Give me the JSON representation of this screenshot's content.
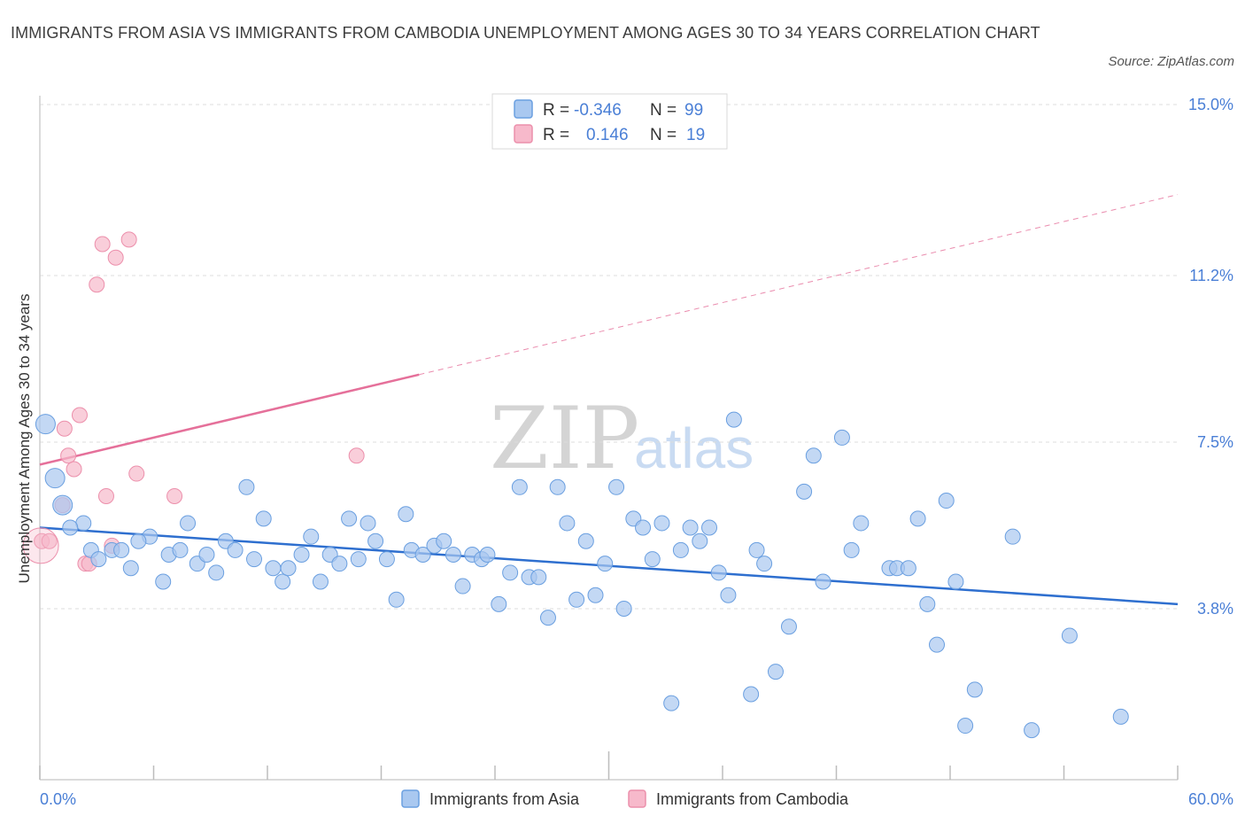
{
  "title": "IMMIGRANTS FROM ASIA VS IMMIGRANTS FROM CAMBODIA UNEMPLOYMENT AMONG AGES 30 TO 34 YEARS CORRELATION CHART",
  "source": "Source: ZipAtlas.com",
  "watermark": {
    "zip": "ZIP",
    "atlas": "atlas"
  },
  "legend": {
    "r_label": "R =",
    "n_label": "N =",
    "rows": [
      {
        "r": "-0.346",
        "n": "99",
        "color": "#a9c8f0"
      },
      {
        "r": "0.146",
        "n": "19",
        "color": "#f7b9cb"
      }
    ]
  },
  "chart_data": {
    "type": "scatter",
    "title": "IMMIGRANTS FROM ASIA VS IMMIGRANTS FROM CAMBODIA UNEMPLOYMENT AMONG AGES 30 TO 34 YEARS CORRELATION CHART",
    "ylabel": "Unemployment Among Ages 30 to 34 years",
    "xlabel": "",
    "x_tick_labels": [
      "0.0%",
      "60.0%"
    ],
    "y_tick_labels": [
      "3.8%",
      "7.5%",
      "11.2%",
      "15.0%"
    ],
    "y_ticks": [
      3.8,
      7.5,
      11.2,
      15.0
    ],
    "xlim": [
      0,
      60
    ],
    "ylim": [
      0,
      15.0
    ],
    "grid": true,
    "legend_position": "top-center",
    "series": [
      {
        "name": "Immigrants from Asia",
        "color": "#a9c8f0",
        "stroke": "#6a9fe0",
        "line_color": "#2e6fcf",
        "trend": {
          "x": [
            0,
            60
          ],
          "y": [
            5.6,
            3.9
          ],
          "dashed_after": 60
        },
        "points": [
          [
            0.3,
            7.9
          ],
          [
            0.8,
            6.7
          ],
          [
            1.2,
            6.1
          ],
          [
            2.3,
            5.7
          ],
          [
            1.6,
            5.6
          ],
          [
            2.7,
            5.1
          ],
          [
            3.1,
            4.9
          ],
          [
            3.8,
            5.1
          ],
          [
            4.3,
            5.1
          ],
          [
            4.8,
            4.7
          ],
          [
            5.8,
            5.4
          ],
          [
            5.2,
            5.3
          ],
          [
            6.5,
            4.4
          ],
          [
            6.8,
            5.0
          ],
          [
            7.4,
            5.1
          ],
          [
            7.8,
            5.7
          ],
          [
            8.3,
            4.8
          ],
          [
            8.8,
            5.0
          ],
          [
            9.3,
            4.6
          ],
          [
            9.8,
            5.3
          ],
          [
            10.3,
            5.1
          ],
          [
            10.9,
            6.5
          ],
          [
            11.3,
            4.9
          ],
          [
            11.8,
            5.8
          ],
          [
            12.3,
            4.7
          ],
          [
            12.8,
            4.4
          ],
          [
            13.1,
            4.7
          ],
          [
            13.8,
            5.0
          ],
          [
            14.3,
            5.4
          ],
          [
            14.8,
            4.4
          ],
          [
            15.3,
            5.0
          ],
          [
            15.8,
            4.8
          ],
          [
            16.3,
            5.8
          ],
          [
            16.8,
            4.9
          ],
          [
            17.3,
            5.7
          ],
          [
            17.7,
            5.3
          ],
          [
            18.3,
            4.9
          ],
          [
            18.8,
            4.0
          ],
          [
            19.3,
            5.9
          ],
          [
            19.6,
            5.1
          ],
          [
            20.2,
            5.0
          ],
          [
            20.8,
            5.2
          ],
          [
            21.3,
            5.3
          ],
          [
            21.8,
            5.0
          ],
          [
            22.3,
            4.3
          ],
          [
            22.8,
            5.0
          ],
          [
            23.3,
            4.9
          ],
          [
            23.6,
            5.0
          ],
          [
            24.2,
            3.9
          ],
          [
            24.8,
            4.6
          ],
          [
            25.3,
            6.5
          ],
          [
            25.8,
            4.5
          ],
          [
            26.3,
            4.5
          ],
          [
            26.8,
            3.6
          ],
          [
            27.3,
            6.5
          ],
          [
            27.8,
            5.7
          ],
          [
            28.3,
            4.0
          ],
          [
            28.8,
            5.3
          ],
          [
            29.3,
            4.1
          ],
          [
            29.8,
            4.8
          ],
          [
            30.4,
            6.5
          ],
          [
            30.8,
            3.8
          ],
          [
            31.3,
            5.8
          ],
          [
            31.8,
            5.6
          ],
          [
            32.3,
            4.9
          ],
          [
            32.8,
            5.7
          ],
          [
            33.3,
            1.7
          ],
          [
            33.8,
            5.1
          ],
          [
            34.3,
            5.6
          ],
          [
            34.8,
            5.3
          ],
          [
            35.3,
            5.6
          ],
          [
            35.8,
            4.6
          ],
          [
            36.3,
            4.1
          ],
          [
            36.6,
            8.0
          ],
          [
            37.5,
            1.9
          ],
          [
            37.8,
            5.1
          ],
          [
            38.2,
            4.8
          ],
          [
            38.8,
            2.4
          ],
          [
            39.5,
            3.4
          ],
          [
            40.3,
            6.4
          ],
          [
            40.8,
            7.2
          ],
          [
            41.3,
            4.4
          ],
          [
            42.3,
            7.6
          ],
          [
            42.8,
            5.1
          ],
          [
            43.3,
            5.7
          ],
          [
            44.8,
            4.7
          ],
          [
            45.2,
            4.7
          ],
          [
            45.8,
            4.7
          ],
          [
            46.3,
            5.8
          ],
          [
            46.8,
            3.9
          ],
          [
            47.3,
            3.0
          ],
          [
            47.8,
            6.2
          ],
          [
            48.3,
            4.4
          ],
          [
            48.8,
            1.2
          ],
          [
            49.3,
            2.0
          ],
          [
            51.3,
            5.4
          ],
          [
            52.3,
            1.1
          ],
          [
            54.3,
            3.2
          ],
          [
            57.0,
            1.4
          ]
        ]
      },
      {
        "name": "Immigrants from Cambodia",
        "color": "#f7b9cb",
        "stroke": "#ec8fab",
        "line_color": "#e5709a",
        "trend": {
          "x": [
            0,
            60
          ],
          "y": [
            7.0,
            13.0
          ],
          "solid_until": 20
        },
        "points": [
          [
            0.1,
            5.3
          ],
          [
            0.5,
            5.3
          ],
          [
            1.2,
            6.1
          ],
          [
            1.3,
            7.8
          ],
          [
            1.5,
            7.2
          ],
          [
            1.8,
            6.9
          ],
          [
            2.1,
            8.1
          ],
          [
            2.4,
            4.8
          ],
          [
            2.6,
            4.8
          ],
          [
            3.0,
            11.0
          ],
          [
            3.3,
            11.9
          ],
          [
            3.5,
            6.3
          ],
          [
            3.8,
            5.2
          ],
          [
            4.0,
            11.6
          ],
          [
            4.7,
            12.0
          ],
          [
            5.1,
            6.8
          ],
          [
            7.1,
            6.3
          ],
          [
            16.7,
            7.2
          ],
          [
            0.05,
            5.2
          ]
        ]
      }
    ]
  }
}
